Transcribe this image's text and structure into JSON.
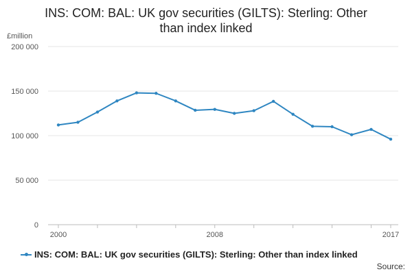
{
  "chart_data": {
    "type": "line",
    "title_line1": "INS: COM: BAL: UK gov securities (GILTS): Sterling: Other",
    "title_line2": "than index linked",
    "ylabel": "£million",
    "ylim": [
      0,
      200000
    ],
    "yticks": [
      0,
      50000,
      100000,
      150000,
      200000
    ],
    "ytick_labels": [
      "0",
      "50 000",
      "100 000",
      "150 000",
      "200 000"
    ],
    "xlim": [
      2000,
      2017
    ],
    "xtick_labels": [
      {
        "year": 2000,
        "label": "2000"
      },
      {
        "year": 2008,
        "label": "2008"
      },
      {
        "year": 2017,
        "label": "2017"
      }
    ],
    "x": [
      2000,
      2001,
      2002,
      2003,
      2004,
      2005,
      2006,
      2007,
      2008,
      2009,
      2010,
      2011,
      2012,
      2013,
      2014,
      2015,
      2016,
      2017
    ],
    "series": [
      {
        "name": "INS: COM: BAL: UK gov securities (GILTS): Sterling: Other than index linked",
        "color": "#2E86C1",
        "values": [
          112000,
          115000,
          126500,
          139000,
          148000,
          147500,
          139000,
          128500,
          129500,
          125000,
          128000,
          138500,
          124000,
          110500,
          110000,
          101000,
          107000,
          96000
        ]
      }
    ],
    "grid": true,
    "legend_position": "bottom",
    "source_label": "Source:"
  }
}
